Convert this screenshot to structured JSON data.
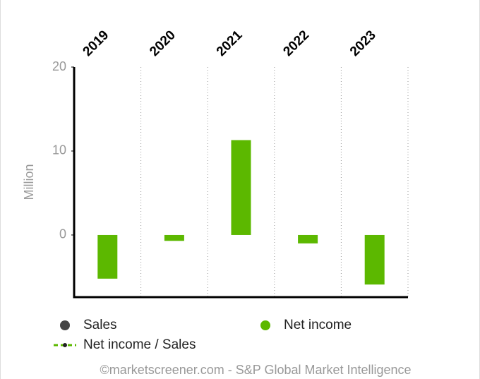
{
  "chart_data": {
    "type": "bar",
    "categories": [
      "2019",
      "2020",
      "2021",
      "2022",
      "2023"
    ],
    "series": [
      {
        "name": "Sales",
        "color": "#444444",
        "values": [
          null,
          null,
          null,
          null,
          null
        ]
      },
      {
        "name": "Net income",
        "color": "#5cb800",
        "values": [
          -5.2,
          -0.7,
          11.3,
          -1.0,
          -5.9
        ]
      },
      {
        "name": "Net income / Sales",
        "color": "#5cb800",
        "values": [
          null,
          null,
          null,
          null,
          null
        ]
      }
    ],
    "y_label": "Million",
    "ylim": [
      -7.4,
      20
    ],
    "yticks": [
      0,
      10,
      20
    ],
    "credit": "©marketscreener.com - S&P Global Market Intelligence"
  }
}
